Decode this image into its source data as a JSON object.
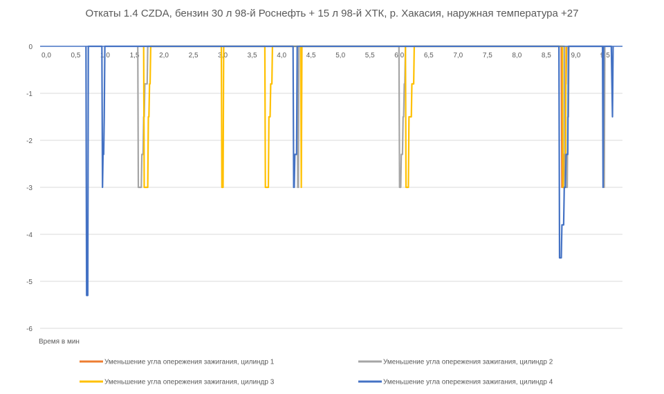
{
  "chart_data": {
    "type": "line",
    "title": "Откаты 1.4 CZDA, бензин 30 л 98-й Роснефть + 15 л 98-й ХТК, р. Хакасия, наружная температура +27",
    "xlabel": "Время в мин",
    "ylabel": "",
    "xlim": [
      0,
      9.9
    ],
    "ylim": [
      -6,
      0
    ],
    "x_ticks": [
      "0,0",
      "0,5",
      "1,0",
      "1,5",
      "2,0",
      "2,5",
      "3,0",
      "3,5",
      "4,0",
      "4,5",
      "5,0",
      "5,5",
      "6,0",
      "6,5",
      "7,0",
      "7,5",
      "8,0",
      "8,5",
      "9,0",
      "9,5"
    ],
    "x_tick_values": [
      0,
      0.5,
      1,
      1.5,
      2,
      2.5,
      3,
      3.5,
      4,
      4.5,
      5,
      5.5,
      6,
      6.5,
      7,
      7.5,
      8,
      8.5,
      9,
      9.5
    ],
    "y_ticks": [
      0,
      -1,
      -2,
      -3,
      -4,
      -5,
      -6
    ],
    "grid": "horizontal",
    "legend_position": "bottom",
    "series": [
      {
        "name": "Уменьшение угла опережения зажигания, цилиндр 1",
        "color": "#ED7D31",
        "points": [
          [
            8.86,
            0
          ],
          [
            8.87,
            -3
          ],
          [
            8.89,
            -3
          ],
          [
            8.9,
            -2.3
          ],
          [
            8.92,
            -2.3
          ],
          [
            8.93,
            -0.8
          ],
          [
            8.94,
            -0.8
          ],
          [
            8.95,
            0
          ]
        ]
      },
      {
        "name": "Уменьшение угла опережения зажигания, цилиндр 2",
        "color": "#A5A5A5",
        "points": [
          [
            1.66,
            0
          ],
          [
            1.67,
            -3
          ],
          [
            1.72,
            -3
          ],
          [
            1.73,
            -2.3
          ],
          [
            1.75,
            -2.3
          ],
          [
            1.76,
            -1.5
          ],
          [
            1.77,
            -1.5
          ],
          [
            1.78,
            -0.8
          ],
          [
            1.82,
            -0.8
          ],
          [
            1.83,
            0
          ],
          [
            4.37,
            0
          ],
          [
            4.38,
            -3
          ],
          [
            4.39,
            -3
          ],
          [
            4.4,
            0
          ],
          [
            6.1,
            0
          ],
          [
            6.11,
            -3
          ],
          [
            6.13,
            -3
          ],
          [
            6.14,
            -2.3
          ],
          [
            6.16,
            -2.3
          ],
          [
            6.17,
            -1.5
          ],
          [
            6.18,
            -1.5
          ],
          [
            6.19,
            -0.8
          ],
          [
            6.2,
            -0.8
          ],
          [
            6.21,
            0
          ],
          [
            8.91,
            0
          ],
          [
            8.92,
            -3
          ],
          [
            8.96,
            -3
          ],
          [
            8.97,
            -1.5
          ],
          [
            8.98,
            -1.5
          ],
          [
            8.99,
            0
          ],
          [
            9.58,
            0
          ],
          [
            9.59,
            -3
          ],
          [
            9.6,
            0
          ]
        ]
      },
      {
        "name": "Уменьшение угла опережения зажигания, цилиндр 3",
        "color": "#FFC000",
        "points": [
          [
            1.76,
            0
          ],
          [
            1.77,
            -3
          ],
          [
            1.83,
            -3
          ],
          [
            1.84,
            -1.5
          ],
          [
            1.85,
            -1.5
          ],
          [
            1.86,
            -0.8
          ],
          [
            1.87,
            -0.8
          ],
          [
            1.88,
            0
          ],
          [
            3.08,
            0
          ],
          [
            3.09,
            -3
          ],
          [
            3.11,
            -3
          ],
          [
            3.12,
            0
          ],
          [
            3.82,
            0
          ],
          [
            3.83,
            -3
          ],
          [
            3.88,
            -3
          ],
          [
            3.89,
            -1.5
          ],
          [
            3.91,
            -1.5
          ],
          [
            3.92,
            -0.8
          ],
          [
            3.94,
            -0.8
          ],
          [
            3.95,
            0
          ],
          [
            4.43,
            0
          ],
          [
            4.44,
            -3
          ],
          [
            4.45,
            0
          ],
          [
            6.21,
            0
          ],
          [
            6.22,
            -3
          ],
          [
            6.26,
            -3
          ],
          [
            6.27,
            -1.5
          ],
          [
            6.31,
            -1.5
          ],
          [
            6.32,
            -0.8
          ],
          [
            6.35,
            -0.8
          ],
          [
            6.36,
            0
          ],
          [
            8.88,
            0
          ],
          [
            8.89,
            -3
          ],
          [
            8.93,
            -3
          ],
          [
            8.94,
            0
          ]
        ]
      },
      {
        "name": "Уменьшение угла опережения зажигания, цилиндр 4",
        "color": "#4472C4",
        "points": [
          [
            0.78,
            0
          ],
          [
            0.79,
            -5.3
          ],
          [
            0.81,
            -5.3
          ],
          [
            0.82,
            0
          ],
          [
            1.05,
            0
          ],
          [
            1.06,
            -3
          ],
          [
            1.07,
            -2.3
          ],
          [
            1.08,
            -2.3
          ],
          [
            1.09,
            -1.5
          ],
          [
            1.1,
            0
          ],
          [
            4.3,
            0
          ],
          [
            4.31,
            -3
          ],
          [
            4.32,
            -3
          ],
          [
            4.33,
            -2.3
          ],
          [
            4.36,
            -2.3
          ],
          [
            4.37,
            0
          ],
          [
            8.82,
            0
          ],
          [
            8.83,
            -4.5
          ],
          [
            8.86,
            -4.5
          ],
          [
            8.87,
            -3.8
          ],
          [
            8.9,
            -3.8
          ],
          [
            8.91,
            -3
          ],
          [
            8.93,
            -3
          ],
          [
            8.94,
            -2.3
          ],
          [
            8.97,
            -2.3
          ],
          [
            8.98,
            0
          ],
          [
            9.56,
            0
          ],
          [
            9.57,
            -3
          ],
          [
            9.58,
            0
          ],
          [
            9.71,
            0
          ],
          [
            9.72,
            -0.8
          ],
          [
            9.73,
            -1.5
          ],
          [
            9.74,
            0
          ]
        ]
      }
    ]
  }
}
